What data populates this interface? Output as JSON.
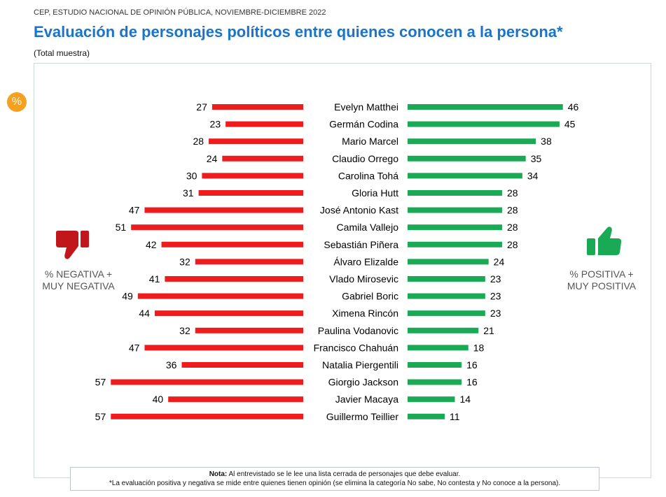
{
  "header": {
    "source": "CEP, ESTUDIO NACIONAL DE OPINIÓN PÚBLICA, NOVIEMBRE-DICIEMBRE 2022",
    "title": "Evaluación de personajes políticos entre quienes conocen a la persona*",
    "subtitle": "(Total muestra)"
  },
  "badge": "%",
  "labels": {
    "negative": "% NEGATIVA + MUY NEGATIVA",
    "positive": "% POSITIVA + MUY POSITIVA"
  },
  "note": {
    "prefix": "Nota:",
    "line1": "Al entrevistado se le lee una lista cerrada de personajes que debe evaluar.",
    "line2": "*La evaluación positiva y negativa se mide entre quienes tienen opinión (se elimina la categoría No sabe, No contesta y No conoce a la persona)."
  },
  "colors": {
    "negative": "#ee1c1c",
    "positive": "#1aaa55",
    "title": "#1a74c7",
    "badge": "#f5a020"
  },
  "icons": {
    "negative": "thumbs-down-icon",
    "positive": "thumbs-up-icon"
  },
  "chart_data": {
    "type": "bar",
    "categories": [
      "Evelyn Matthei",
      "Germán Codina",
      "Mario Marcel",
      "Claudio Orrego",
      "Carolina Tohá",
      "Gloria Hutt",
      "José Antonio Kast",
      "Camila Vallejo",
      "Sebastián Piñera",
      "Álvaro Elizalde",
      "Vlado Mirosevic",
      "Gabriel Boric",
      "Ximena Rincón",
      "Paulina Vodanovic",
      "Francisco Chahuán",
      "Natalia Piergentili",
      "Giorgio Jackson",
      "Javier Macaya",
      "Guillermo Teillier"
    ],
    "series": [
      {
        "name": "% NEGATIVA + MUY NEGATIVA",
        "values": [
          27,
          23,
          28,
          24,
          30,
          31,
          47,
          51,
          42,
          32,
          41,
          49,
          44,
          32,
          47,
          36,
          57,
          40,
          57
        ]
      },
      {
        "name": "% POSITIVA + MUY POSITIVA",
        "values": [
          46,
          45,
          38,
          35,
          34,
          28,
          28,
          28,
          28,
          24,
          23,
          23,
          23,
          21,
          18,
          16,
          16,
          14,
          11
        ]
      }
    ]
  }
}
